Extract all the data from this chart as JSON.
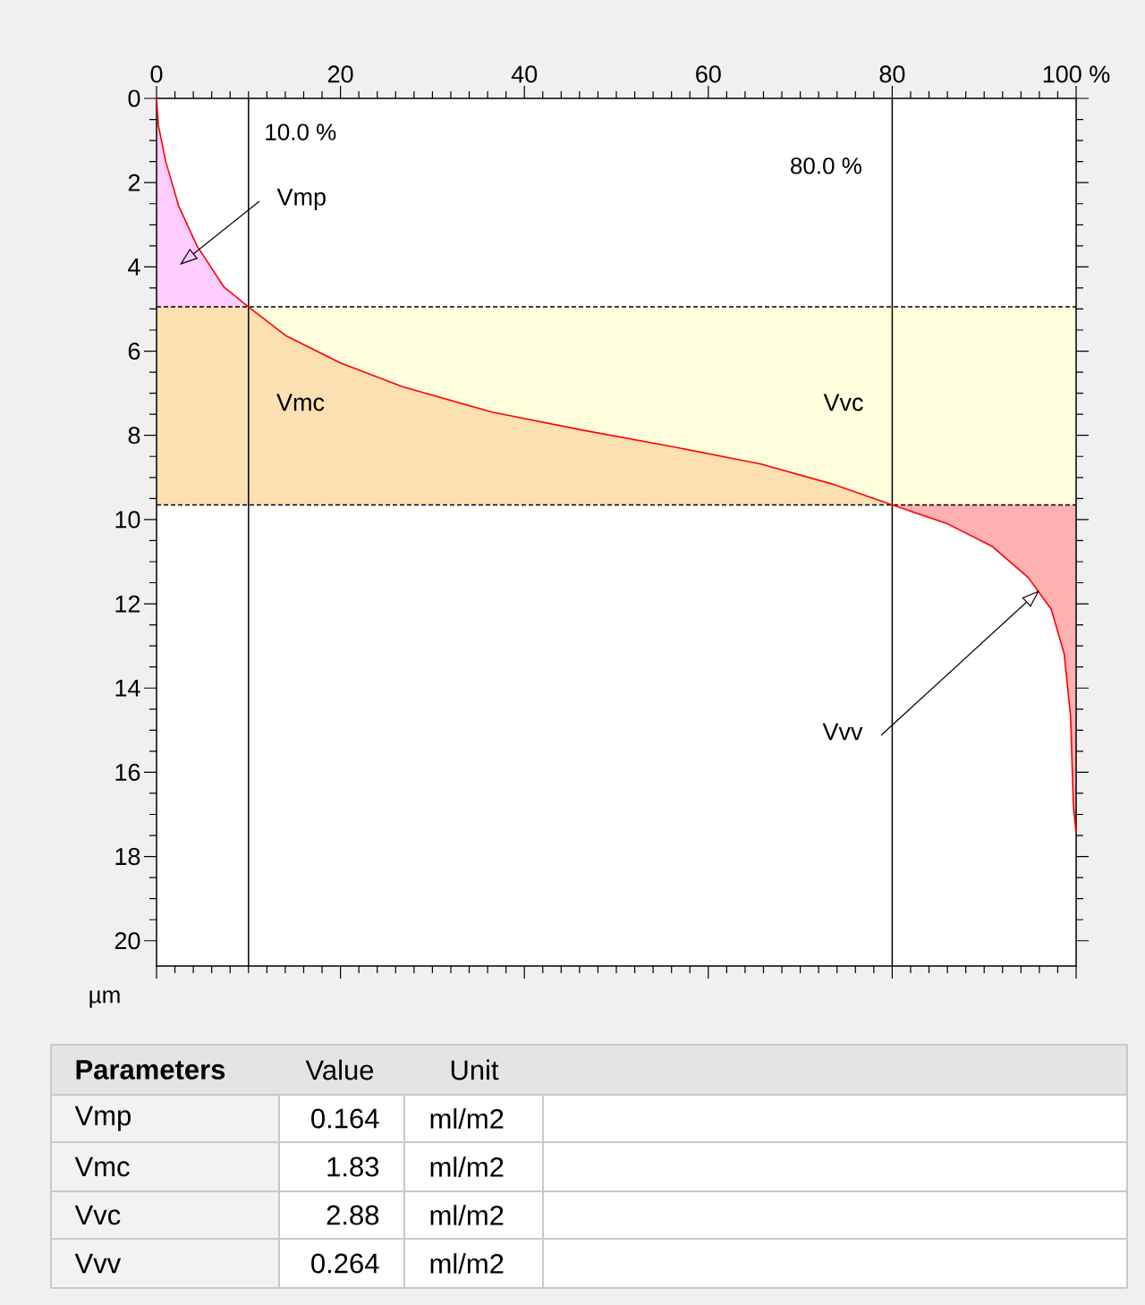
{
  "chart_data": {
    "type": "line",
    "ylabel": "µm",
    "xlim": [
      0,
      100
    ],
    "xticks": [
      0,
      20,
      40,
      60,
      80,
      {
        "value": 100,
        "label": "100 %"
      }
    ],
    "ylim": [
      20.6,
      0
    ],
    "yticks": [
      0,
      2,
      4,
      6,
      8,
      10,
      12,
      14,
      16,
      18,
      20
    ],
    "series": [
      {
        "color": "#ff0000",
        "x": [
          0,
          0.2,
          1.0,
          2.4,
          4.4,
          7.3,
          10,
          14.1,
          20,
          26.8,
          36.5,
          46.2,
          55.9,
          65.7,
          73.4,
          80,
          86,
          90.9,
          94.8,
          97.3,
          98.7,
          99.4,
          99.7,
          100
        ],
        "values": [
          0,
          0.64,
          1.5,
          2.55,
          3.5,
          4.47,
          4.95,
          5.64,
          6.28,
          6.85,
          7.45,
          7.87,
          8.26,
          8.68,
          9.15,
          9.65,
          10.1,
          10.64,
          11.38,
          12.13,
          13.19,
          14.68,
          16.8,
          17.45
        ]
      }
    ],
    "ref_lines": [
      {
        "axis": "x",
        "value": 10,
        "label": "10.0 %",
        "color": "#000000",
        "line_style": "solid"
      },
      {
        "axis": "x",
        "value": 80,
        "label": "80.0 %",
        "color": "#000000",
        "line_style": "solid"
      },
      {
        "axis": "y",
        "value": 4.95,
        "color": "#000000",
        "line_style": "dashed"
      },
      {
        "axis": "y",
        "value": 9.65,
        "color": "#000000",
        "line_style": "dashed"
      }
    ],
    "bands": [
      {
        "axis": "y",
        "from": 4.95,
        "to": 9.65,
        "color": "#ffffdd"
      }
    ],
    "annotations": [
      "Vmp",
      "Vmc",
      "Vvc",
      "Vvv",
      "Parameters",
      "Value",
      "Unit",
      "Vmp",
      "0.164",
      "ml/m2",
      "Vmc",
      "1.83",
      "ml/m2",
      "Vvc",
      "2.88",
      "ml/m2",
      "Vvv",
      "0.264",
      "ml/m2"
    ]
  }
}
